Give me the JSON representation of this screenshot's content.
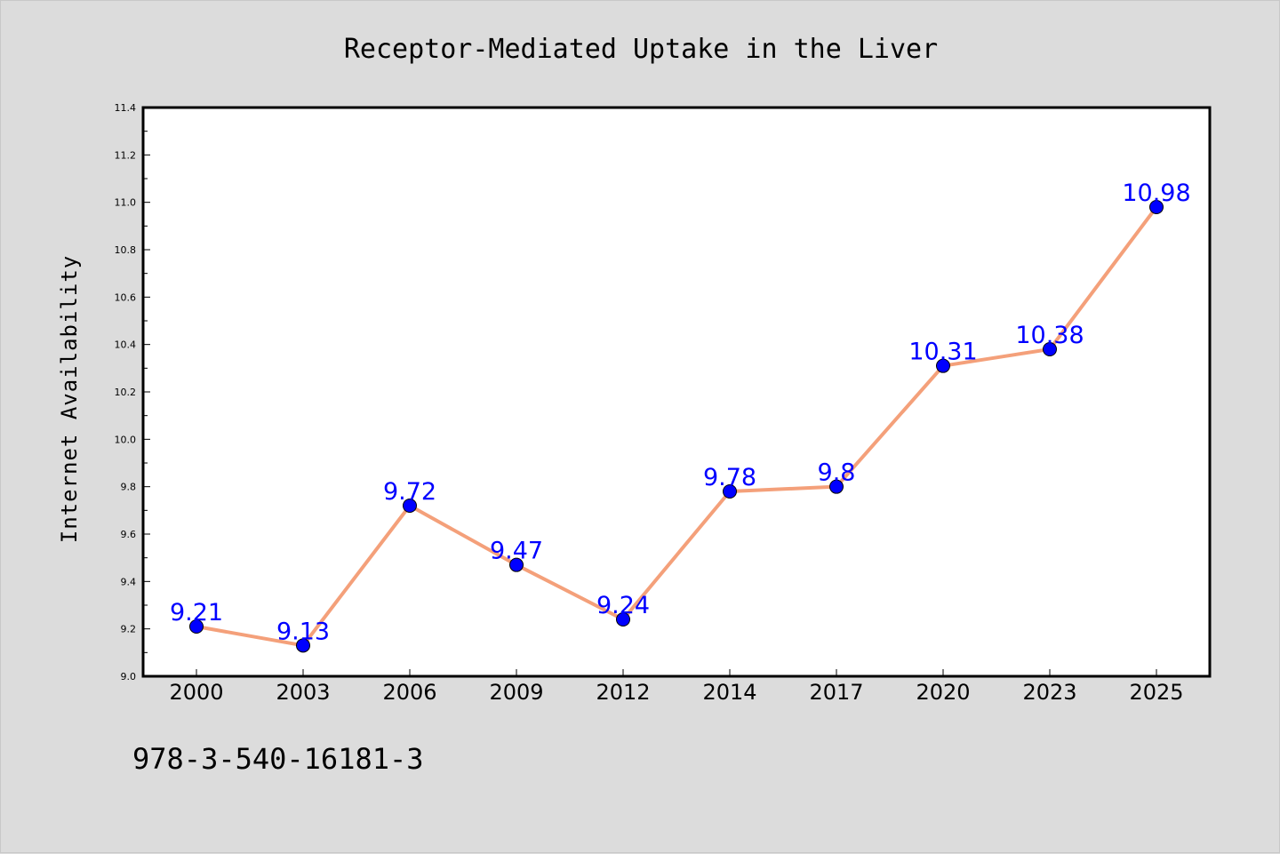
{
  "colors": {
    "figure_background": "#dcdcdc",
    "plot_background": "#ffffff",
    "line": "#f4a07a",
    "marker": "#0000ff",
    "data_label": "#0000ff"
  },
  "footnote": "978-3-540-16181-3",
  "chart_data": {
    "type": "line",
    "title": "Receptor-Mediated Uptake in the Liver",
    "xlabel": "",
    "ylabel": "Internet Availability",
    "categories": [
      "2000",
      "2003",
      "2006",
      "2009",
      "2012",
      "2014",
      "2017",
      "2020",
      "2023",
      "2025"
    ],
    "series": [
      {
        "values": [
          9.21,
          9.13,
          9.72,
          9.47,
          9.24,
          9.78,
          9.8,
          10.31,
          10.38,
          10.98
        ],
        "labels": [
          "9.21",
          "9.13",
          "9.72",
          "9.47",
          "9.24",
          "9.78",
          "9.8",
          "10.31",
          "10.38",
          "10.98"
        ]
      }
    ],
    "ylim": [
      9.0,
      11.4
    ],
    "yticks": [
      "9.0",
      "9.2",
      "9.4",
      "9.6",
      "9.8",
      "10.0",
      "10.2",
      "10.4",
      "10.6",
      "10.8",
      "11.0",
      "11.2",
      "11.4"
    ],
    "grid": false,
    "legend": "none",
    "marker": "circle"
  }
}
